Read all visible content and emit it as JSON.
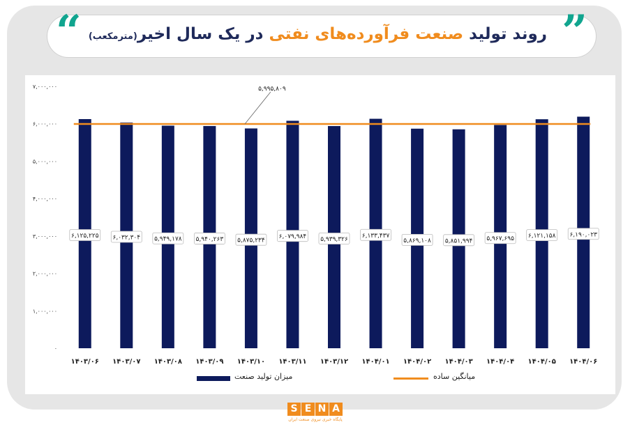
{
  "header": {
    "title_part1": "روند تولید",
    "title_highlight": "صنعت فرآورده‌های نفتی",
    "title_part2": "در یک سال اخیر",
    "title_unit": "(مترمکعب)"
  },
  "colors": {
    "bar": "#0d1a5c",
    "average_line": "#f08c1e",
    "accent_quotes": "#11a58f",
    "title_highlight": "#f08c1e"
  },
  "legend": {
    "bar_label": "میزان تولید صنعت",
    "line_label": "میانگین ساده"
  },
  "logo": {
    "letters": [
      "S",
      "E",
      "N",
      "A"
    ],
    "subtitle": "پایگاه خبری نیروی صنعت ایران"
  },
  "chart_data": {
    "type": "bar",
    "categories": [
      "۱۴۰۳/۰۶",
      "۱۴۰۳/۰۷",
      "۱۴۰۳/۰۸",
      "۱۴۰۳/۰۹",
      "۱۴۰۳/۱۰",
      "۱۴۰۳/۱۱",
      "۱۴۰۳/۱۲",
      "۱۴۰۴/۰۱",
      "۱۴۰۴/۰۲",
      "۱۴۰۴/۰۳",
      "۱۴۰۴/۰۴",
      "۱۴۰۴/۰۵",
      "۱۴۰۴/۰۶"
    ],
    "series": [
      {
        "name": "میزان تولید صنعت",
        "type": "bar",
        "values": [
          6125225,
          6032304,
          5949178,
          5940263,
          5875234,
          6079984,
          5939326,
          6133437,
          5869108,
          5851994,
          5967695,
          6121158,
          6190023
        ],
        "labels": [
          "۶,۱۲۵,۲۲۵",
          "۶,۰۳۲,۳۰۴",
          "۵,۹۴۹,۱۷۸",
          "۵,۹۴۰,۲۶۳",
          "۵,۸۷۵,۲۳۴",
          "۶,۰۷۹,۹۸۴",
          "۵,۹۳۹,۳۲۶",
          "۶,۱۳۳,۴۳۷",
          "۵,۸۶۹,۱۰۸",
          "۵,۸۵۱,۹۹۴",
          "۵,۹۶۷,۶۹۵",
          "۶,۱۲۱,۱۵۸",
          "۶,۱۹۰,۰۲۳"
        ]
      },
      {
        "name": "میانگین ساده",
        "type": "line",
        "value": 5995809,
        "label": "۵,۹۹۵,۸۰۹"
      }
    ],
    "ylim": [
      0,
      7000000
    ],
    "yticks": [
      0,
      1000000,
      2000000,
      3000000,
      4000000,
      5000000,
      6000000,
      7000000
    ],
    "ytick_labels": [
      "۰",
      "۱,۰۰۰,۰۰۰",
      "۲,۰۰۰,۰۰۰",
      "۳,۰۰۰,۰۰۰",
      "۴,۰۰۰,۰۰۰",
      "۵,۰۰۰,۰۰۰",
      "۶,۰۰۰,۰۰۰",
      "۷,۰۰۰,۰۰۰"
    ],
    "grid": false,
    "legend_position": "bottom"
  }
}
